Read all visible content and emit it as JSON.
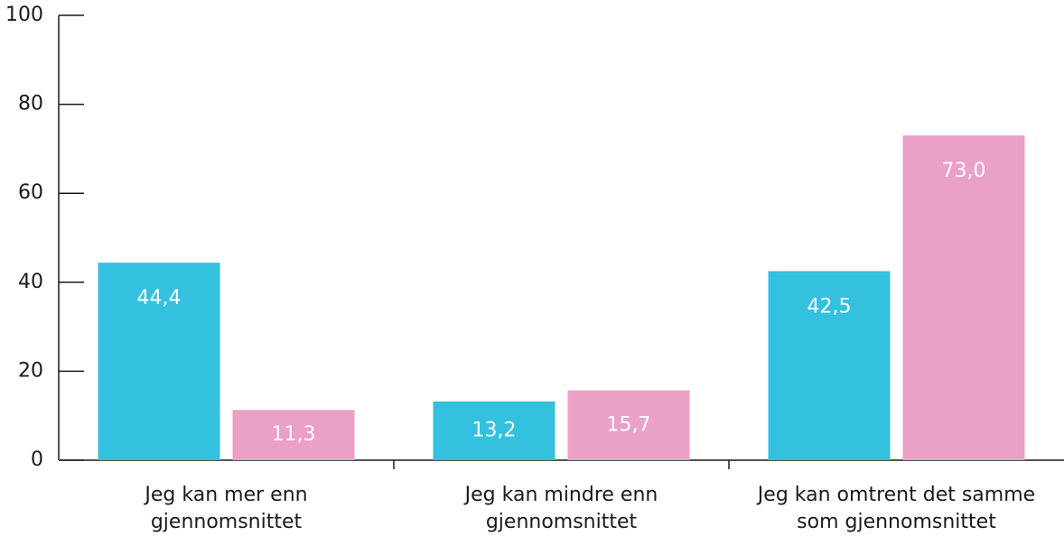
{
  "chart_data": {
    "type": "bar",
    "categories": [
      "Jeg kan mer enn\ngjennomsnittet",
      "Jeg kan mindre enn\ngjennomsnittet",
      "Jeg kan omtrent det samme\nsom gjennomsnittet"
    ],
    "series": [
      {
        "color": "#33c1df",
        "values": [
          44.4,
          13.2,
          42.5
        ],
        "value_labels": [
          "44,4",
          "13,2",
          "42,5"
        ]
      },
      {
        "color": "#eba0c8",
        "values": [
          11.3,
          15.7,
          73.0
        ],
        "value_labels": [
          "11,3",
          "15,7",
          "73,0"
        ]
      }
    ],
    "ylim": [
      0,
      100
    ],
    "yticks": [
      0,
      20,
      40,
      60,
      80,
      100
    ]
  }
}
